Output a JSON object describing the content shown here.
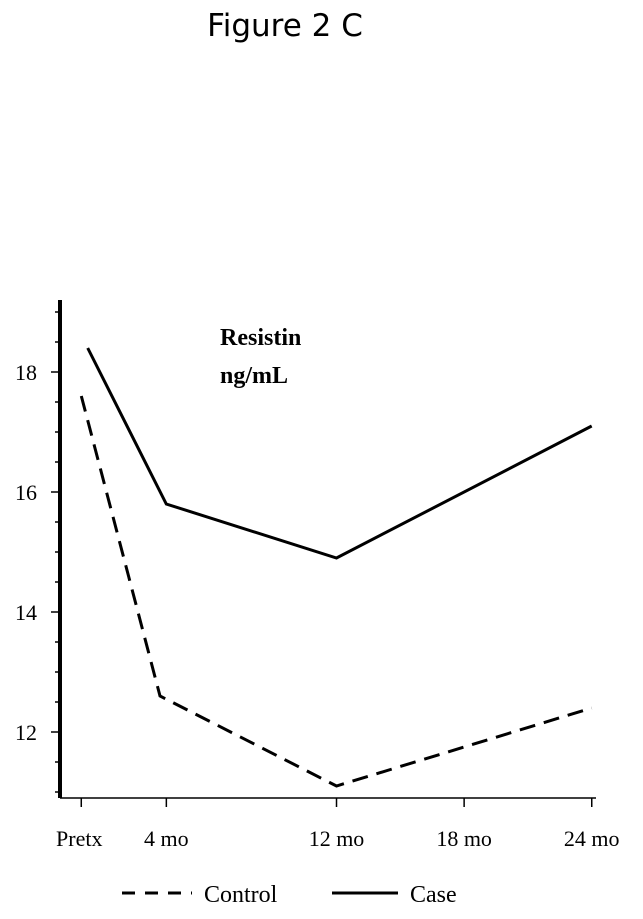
{
  "figure_title": "Figure 2 C",
  "chart_data": {
    "type": "line",
    "title": "",
    "annotation": [
      "Resistin",
      "ng/mL"
    ],
    "xlabel": "",
    "ylabel": "",
    "x_tick_labels": [
      "Pretx",
      "4 mo",
      "12 mo",
      "18 mo",
      "24 mo"
    ],
    "x_tick_values": [
      0,
      4,
      12,
      18,
      24
    ],
    "xlim": [
      -1,
      24.2
    ],
    "y_ticks": [
      12,
      14,
      16,
      18
    ],
    "ylim": [
      10.9,
      19.2
    ],
    "grid": false,
    "legend_position": "bottom",
    "series": [
      {
        "name": "Control",
        "style": "dashed",
        "color": "#000000",
        "x": [
          0,
          3.7,
          12,
          24
        ],
        "y": [
          17.6,
          12.6,
          11.1,
          12.4
        ]
      },
      {
        "name": "Case",
        "style": "solid",
        "color": "#000000",
        "x": [
          0.3,
          4,
          12,
          24
        ],
        "y": [
          18.4,
          15.8,
          14.9,
          17.1
        ]
      }
    ]
  }
}
